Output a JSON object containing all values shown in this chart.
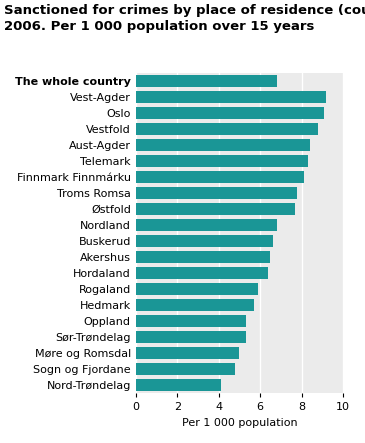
{
  "title_line1": "Sanctioned for crimes by place of residence (county).",
  "title_line2": "2006. Per 1 000 population over 15 years",
  "xlabel": "Per 1 000 population",
  "categories": [
    "Nord-Trøndelag",
    "Sogn og Fjordane",
    "Møre og Romsdal",
    "Sør-Trøndelag",
    "Oppland",
    "Hedmark",
    "Rogaland",
    "Hordaland",
    "Akershus",
    "Buskerud",
    "Nordland",
    "Østfold",
    "Troms Romsa",
    "Finnmark Finnmárku",
    "Telemark",
    "Aust-Agder",
    "Vestfold",
    "Oslo",
    "Vest-Agder",
    "The whole country"
  ],
  "values": [
    4.1,
    4.8,
    5.0,
    5.3,
    5.3,
    5.7,
    5.9,
    6.4,
    6.5,
    6.6,
    6.8,
    7.7,
    7.8,
    8.1,
    8.3,
    8.4,
    8.8,
    9.1,
    9.2,
    6.8
  ],
  "bar_color": "#1a9696",
  "xlim": [
    0,
    10
  ],
  "xticks": [
    0,
    2,
    4,
    6,
    8,
    10
  ],
  "background_color": "#ffffff",
  "plot_bg_color": "#ebebeb",
  "grid_color": "#ffffff",
  "title_fontsize": 9.5,
  "label_fontsize": 8,
  "tick_fontsize": 8,
  "bold_index": 19,
  "bar_height": 0.75
}
